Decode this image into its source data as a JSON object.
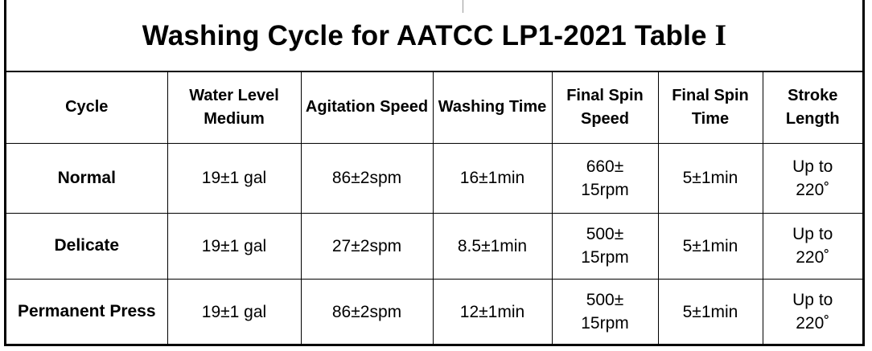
{
  "title": {
    "text": "Washing Cycle for AATCC LP1-2021 Table",
    "numeral": "I"
  },
  "headers": [
    "Cycle",
    "Water Level Medium",
    "Agitation Speed",
    "Washing Time",
    "Final Spin Speed",
    "Final Spin Time",
    "Stroke Length"
  ],
  "rows": [
    {
      "cycle": "Normal",
      "water_level": "19±1 gal",
      "agitation_speed": "86±2spm",
      "washing_time": "16±1min",
      "final_spin_speed": "660± 15rpm",
      "final_spin_time": "5±1min",
      "stroke_length": "Up to 220˚"
    },
    {
      "cycle": "Delicate",
      "water_level": "19±1 gal",
      "agitation_speed": "27±2spm",
      "washing_time": "8.5±1min",
      "final_spin_speed": "500± 15rpm",
      "final_spin_time": "5±1min",
      "stroke_length": "Up to 220˚"
    },
    {
      "cycle": "Permanent Press",
      "water_level": "19±1 gal",
      "agitation_speed": "86±2spm",
      "washing_time": "12±1min",
      "final_spin_speed": "500± 15rpm",
      "final_spin_time": "5±1min",
      "stroke_length": "Up to 220˚"
    }
  ]
}
